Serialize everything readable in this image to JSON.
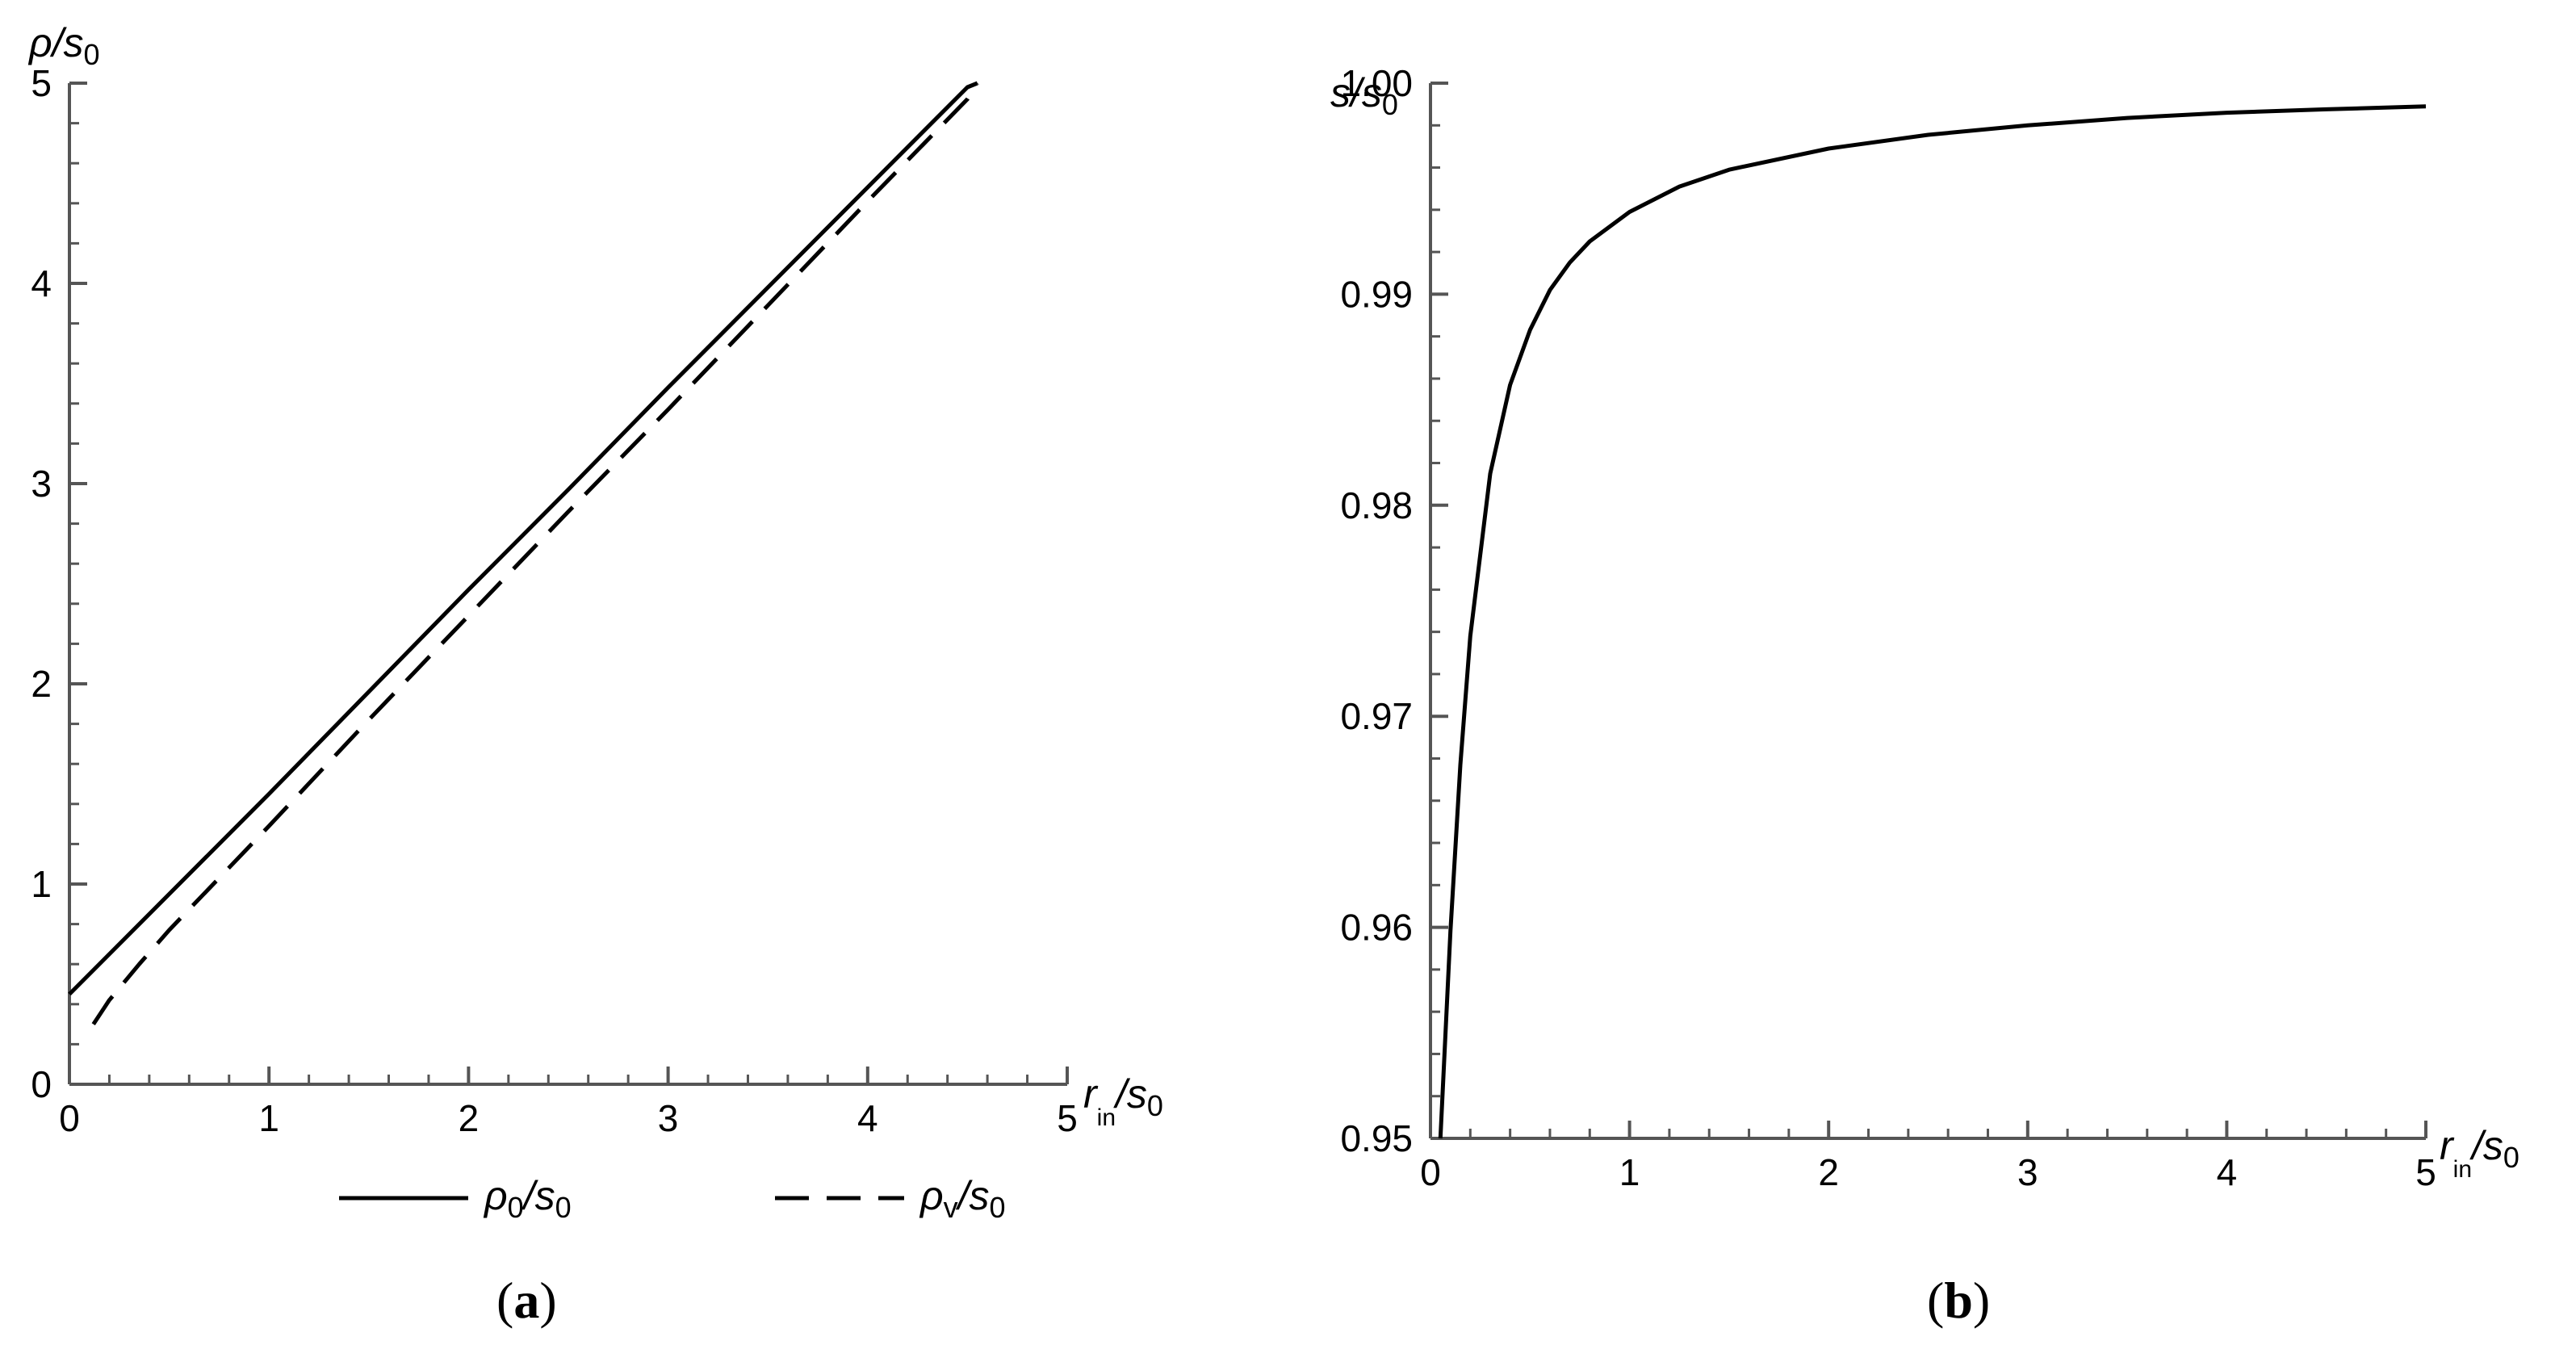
{
  "chart_data": [
    {
      "panel": "a",
      "panel_label": "a",
      "type": "line",
      "xlabel": {
        "main": "r",
        "sub": "in",
        "rest": "/s",
        "sub2": "0"
      },
      "ylabel": {
        "main": "ρ/s",
        "sub": "0"
      },
      "xlim": [
        0,
        5
      ],
      "ylim": [
        0,
        5
      ],
      "xticks": [
        "0",
        "1",
        "2",
        "3",
        "4",
        "5"
      ],
      "yticks": [
        "0",
        "1",
        "2",
        "3",
        "4",
        "5"
      ],
      "grid": false,
      "legend_position": "bottom",
      "series": [
        {
          "style": "solid",
          "legend": {
            "main": "ρ",
            "sub": "0",
            "rest": "/s",
            "sub2": "0"
          },
          "x": [
            0,
            0.5,
            1,
            1.5,
            2,
            2.5,
            3,
            3.5,
            4,
            4.5,
            4.55
          ],
          "y": [
            0.45,
            0.95,
            1.45,
            1.96,
            2.47,
            2.97,
            3.48,
            3.98,
            4.48,
            4.98,
            5.0
          ]
        },
        {
          "style": "dashed",
          "legend": {
            "main": "ρ",
            "sub": "v",
            "rest": "/s",
            "sub2": "0"
          },
          "x": [
            0.12,
            0.2,
            0.35,
            0.5,
            0.75,
            1,
            1.5,
            2,
            2.5,
            3,
            3.5,
            4,
            4.5,
            4.55
          ],
          "y": [
            0.3,
            0.42,
            0.6,
            0.77,
            1.03,
            1.29,
            1.82,
            2.34,
            2.86,
            3.37,
            3.89,
            4.41,
            4.92,
            5.0
          ]
        }
      ]
    },
    {
      "panel": "b",
      "panel_label": "b",
      "type": "line",
      "xlabel": {
        "main": "r",
        "sub": "in",
        "rest": "/s",
        "sub2": "0"
      },
      "ylabel": {
        "main": "s/s",
        "sub": "0"
      },
      "xlim": [
        0,
        5
      ],
      "ylim": [
        0.95,
        1.0
      ],
      "xticks": [
        "0",
        "1",
        "2",
        "3",
        "4",
        "5"
      ],
      "yticks": [
        "0.95",
        "0.96",
        "0.97",
        "0.98",
        "0.99",
        "1.00"
      ],
      "grid": false,
      "series": [
        {
          "style": "solid",
          "x": [
            0.05,
            0.1,
            0.15,
            0.2,
            0.3,
            0.4,
            0.5,
            0.6,
            0.7,
            0.8,
            1.0,
            1.25,
            1.5,
            2.0,
            2.5,
            3.0,
            3.5,
            4.0,
            4.5,
            5.0
          ],
          "y": [
            0.95,
            0.9598,
            0.9677,
            0.9738,
            0.9815,
            0.9857,
            0.9883,
            0.9902,
            0.9915,
            0.9925,
            0.9939,
            0.9951,
            0.9959,
            0.9969,
            0.99755,
            0.998,
            0.99835,
            0.9986,
            0.99876,
            0.9989
          ]
        }
      ]
    }
  ]
}
